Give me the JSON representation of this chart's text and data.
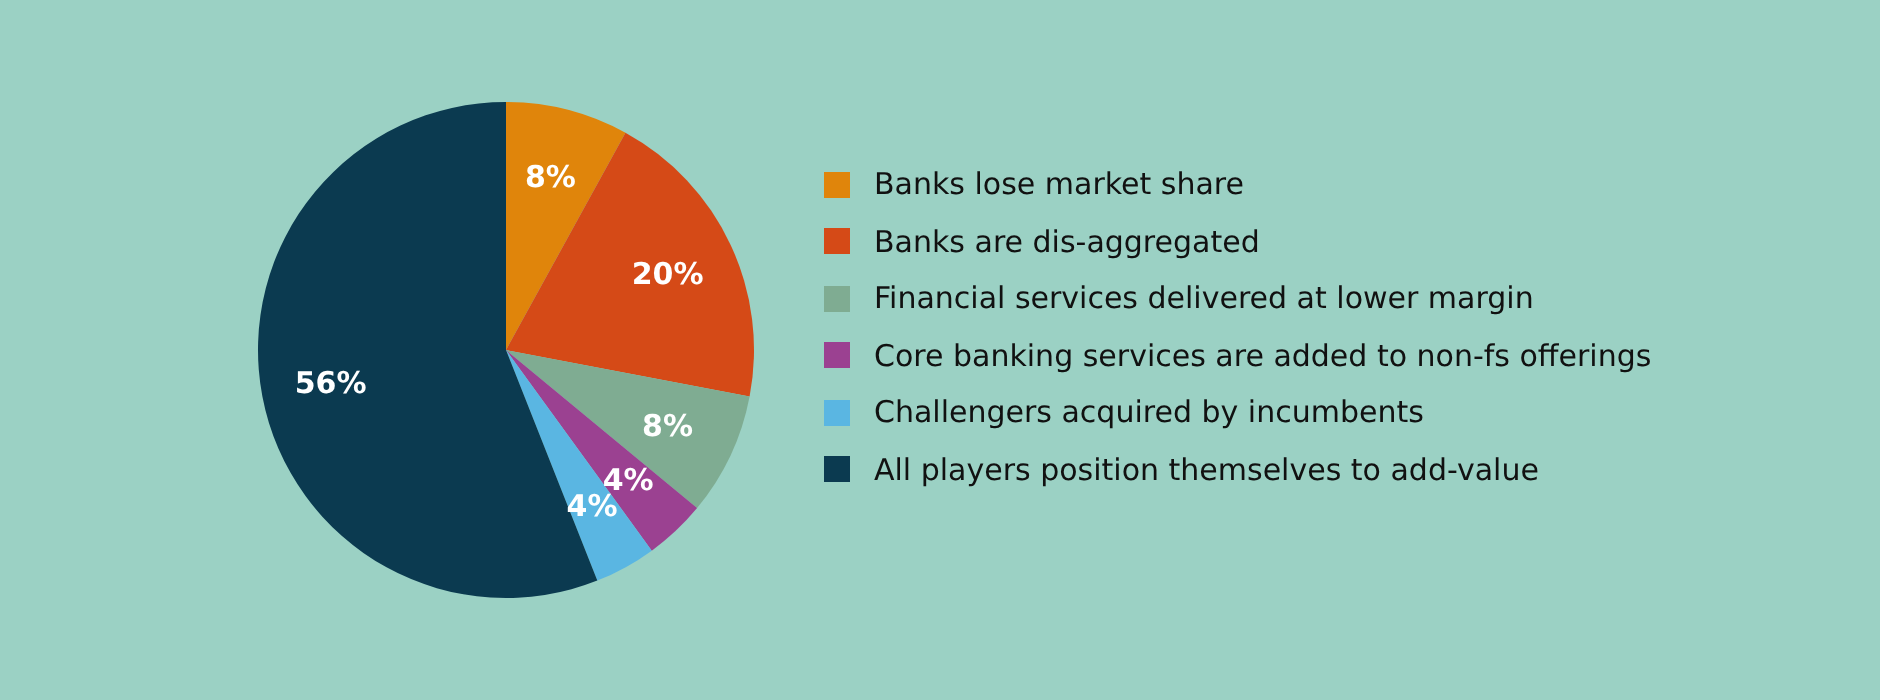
{
  "chart_data": {
    "type": "pie",
    "categories": [
      "Banks lose market share",
      "Banks are dis-aggregated",
      "Financial services delivered at lower margin",
      "Core banking services are added to non-fs offerings",
      "Challengers acquired by incumbents",
      "All players position themselves to add-value"
    ],
    "values": [
      8,
      20,
      8,
      4,
      4,
      56
    ],
    "value_labels": [
      "8%",
      "20%",
      "8%",
      "4%",
      "4%",
      "56%"
    ],
    "colors": [
      "#e0850b",
      "#d54a17",
      "#7fac92",
      "#9b4191",
      "#5ab6e2",
      "#0b3a50"
    ],
    "legend": "right"
  }
}
